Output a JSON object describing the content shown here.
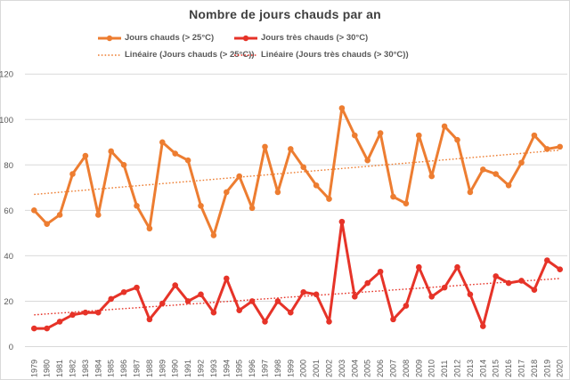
{
  "title": "Nombre de jours chauds par an",
  "legend": [
    {
      "label": "Jours chauds (> 25°C)",
      "color": "#ed7d31",
      "style": "solid-marker"
    },
    {
      "label": "Jours très chauds (> 30°C)",
      "color": "#e63328",
      "style": "solid-marker"
    },
    {
      "label": "Linéaire (Jours chauds (> 25°C))",
      "color": "#ed7d31",
      "style": "dotted"
    },
    {
      "label": "Linéaire (Jours très chauds (> 30°C))",
      "color": "#e63328",
      "style": "dotted"
    }
  ],
  "colors": {
    "orange": "#ed7d31",
    "red": "#e63328",
    "grid": "#d9d9d9",
    "tick_text": "#595959",
    "title_text": "#404040"
  },
  "chart_data": {
    "type": "line",
    "title": "Nombre de jours chauds par an",
    "xlabel": "",
    "ylabel": "",
    "ylim": [
      0,
      120
    ],
    "yticks": [
      0,
      20,
      40,
      60,
      80,
      100,
      120
    ],
    "grid": true,
    "legend_position": "top",
    "categories": [
      "1979",
      "1980",
      "1981",
      "1982",
      "1983",
      "1984",
      "1985",
      "1986",
      "1987",
      "1988",
      "1989",
      "1990",
      "1991",
      "1992",
      "1993",
      "1994",
      "1995",
      "1996",
      "1997",
      "1998",
      "1999",
      "2000",
      "2001",
      "2002",
      "2003",
      "2004",
      "2005",
      "2006",
      "2007",
      "2008",
      "2009",
      "2010",
      "2011",
      "2012",
      "2013",
      "2014",
      "2015",
      "2016",
      "2017",
      "2018",
      "2019",
      "2020"
    ],
    "series": [
      {
        "name": "Jours chauds (> 25°C)",
        "color": "#ed7d31",
        "marker": true,
        "values": [
          60,
          54,
          58,
          76,
          84,
          58,
          86,
          80,
          62,
          52,
          90,
          85,
          82,
          62,
          49,
          68,
          75,
          61,
          88,
          68,
          87,
          79,
          71,
          65,
          105,
          93,
          82,
          94,
          66,
          63,
          93,
          75,
          97,
          91,
          68,
          78,
          76,
          71,
          81,
          93,
          87,
          88
        ]
      },
      {
        "name": "Jours très chauds (> 30°C)",
        "color": "#e63328",
        "marker": true,
        "values": [
          8,
          8,
          11,
          14,
          15,
          15,
          21,
          24,
          26,
          12,
          19,
          27,
          20,
          23,
          15,
          30,
          16,
          20,
          11,
          20,
          15,
          24,
          23,
          11,
          55,
          22,
          28,
          33,
          12,
          18,
          35,
          22,
          26,
          35,
          23,
          9,
          31,
          28,
          29,
          25,
          38,
          34
        ]
      }
    ],
    "trendlines": [
      {
        "name": "Linéaire (Jours chauds (> 25°C))",
        "color": "#ed7d31",
        "start": 67,
        "end": 86.5
      },
      {
        "name": "Linéaire (Jours très chauds (> 30°C))",
        "color": "#e63328",
        "start": 14,
        "end": 30
      }
    ]
  }
}
